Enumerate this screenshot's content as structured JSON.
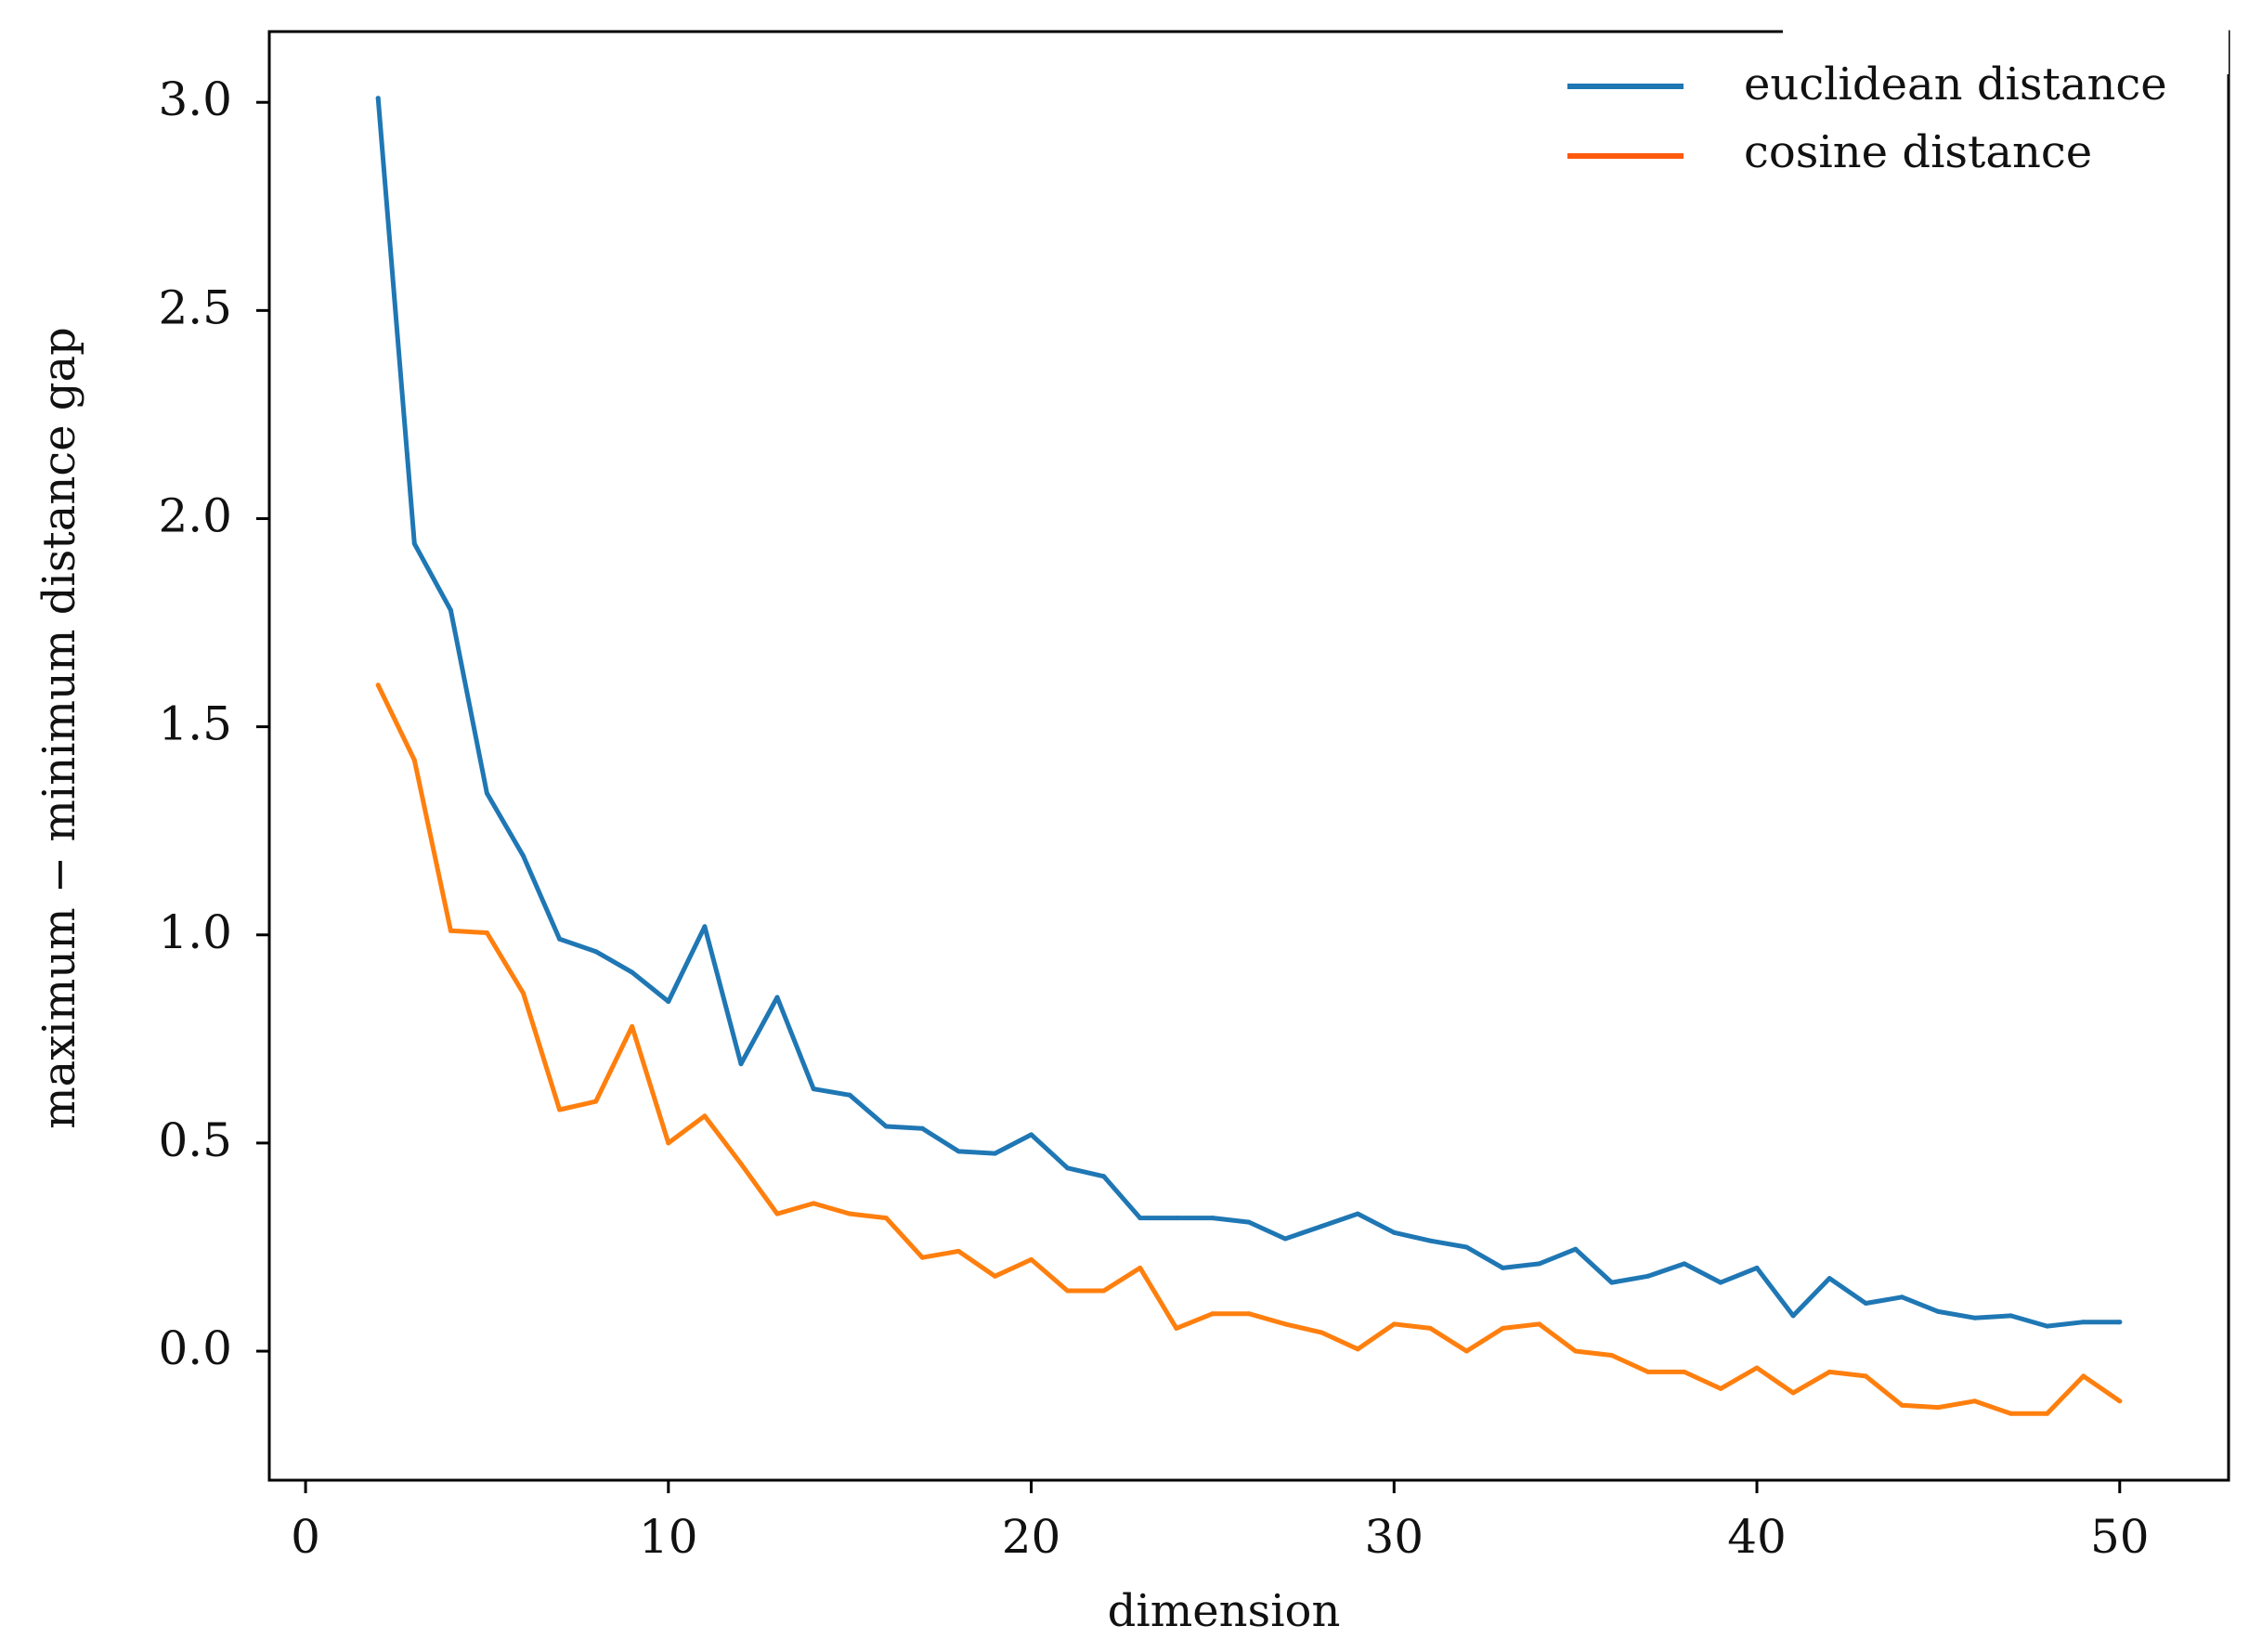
{
  "chart_data": {
    "type": "line",
    "title": "",
    "xlabel": "dimension",
    "ylabel": "maximum − minimum distance gap",
    "xlim": [
      -1,
      53
    ],
    "ylim": [
      -0.31,
      3.17
    ],
    "xticks": [
      0,
      10,
      20,
      30,
      40,
      50
    ],
    "xtick_labels": [
      "0",
      "10",
      "20",
      "30",
      "40",
      "50"
    ],
    "yticks": [
      0.0,
      0.5,
      1.0,
      1.5,
      2.0,
      2.5,
      3.0
    ],
    "ytick_labels": [
      "0.0",
      "0.5",
      "1.0",
      "1.5",
      "2.0",
      "2.5",
      "3.0"
    ],
    "grid": false,
    "legend_position": "top-right",
    "x": [
      2,
      3,
      4,
      5,
      6,
      7,
      8,
      9,
      10,
      11,
      12,
      13,
      14,
      15,
      16,
      17,
      18,
      19,
      20,
      21,
      22,
      23,
      24,
      25,
      26,
      27,
      28,
      29,
      30,
      31,
      32,
      33,
      34,
      35,
      36,
      37,
      38,
      39,
      40,
      41,
      42,
      43,
      44,
      45,
      46,
      47,
      48,
      49,
      50
    ],
    "series": [
      {
        "name": "euclidean distance",
        "color": "#1f77b4",
        "values": [
          3.01,
          1.94,
          1.78,
          1.34,
          1.19,
          0.99,
          0.96,
          0.91,
          0.84,
          1.02,
          0.69,
          0.85,
          0.63,
          0.615,
          0.54,
          0.535,
          0.48,
          0.475,
          0.52,
          0.44,
          0.42,
          0.32,
          0.32,
          0.32,
          0.31,
          0.27,
          0.3,
          0.33,
          0.285,
          0.265,
          0.25,
          0.2,
          0.21,
          0.245,
          0.165,
          0.18,
          0.21,
          0.165,
          0.2,
          0.085,
          0.175,
          0.115,
          0.13,
          0.095,
          0.08,
          0.085,
          0.06,
          0.07,
          0.07
        ]
      },
      {
        "name": "cosine distance",
        "color": "#ff7f0e",
        "values": [
          1.6,
          1.42,
          1.01,
          1.005,
          0.86,
          0.58,
          0.6,
          0.78,
          0.5,
          0.565,
          0.45,
          0.33,
          0.355,
          0.33,
          0.32,
          0.225,
          0.24,
          0.18,
          0.22,
          0.145,
          0.145,
          0.2,
          0.055,
          0.09,
          0.09,
          0.065,
          0.045,
          0.005,
          0.065,
          0.055,
          0.0,
          0.055,
          0.065,
          0.0,
          -0.01,
          -0.05,
          -0.05,
          -0.09,
          -0.04,
          -0.1,
          -0.05,
          -0.06,
          -0.13,
          -0.135,
          -0.12,
          -0.15,
          -0.15,
          -0.06,
          -0.12
        ]
      }
    ],
    "legend_line_color_cosine": "#ff5a0e"
  }
}
